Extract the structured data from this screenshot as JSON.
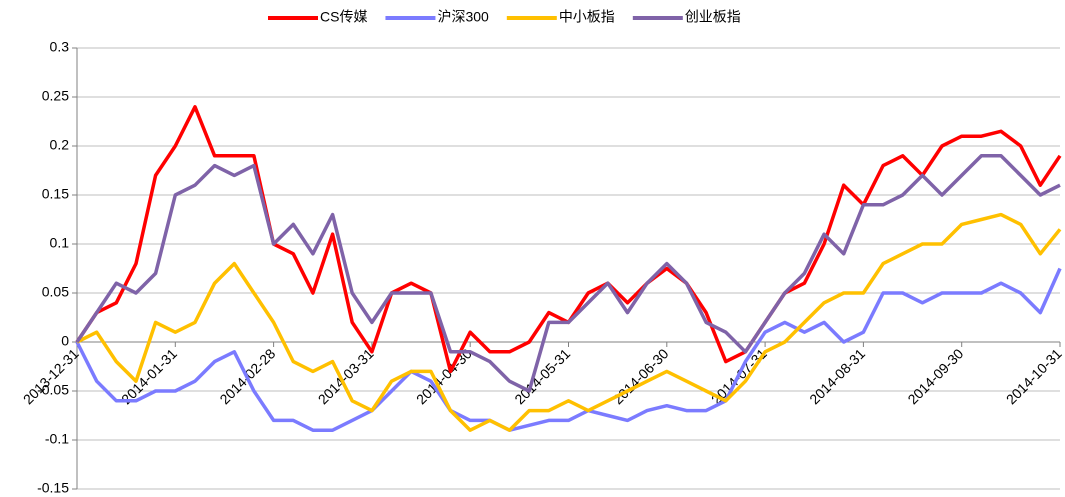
{
  "chart_data": {
    "type": "line",
    "categories": [
      "2013-12-31",
      null,
      null,
      null,
      null,
      "2014-01-31",
      null,
      null,
      null,
      null,
      "2014-02-28",
      null,
      null,
      null,
      null,
      "2014-03-31",
      null,
      null,
      null,
      null,
      "2014-04-30",
      null,
      null,
      null,
      null,
      "2014-05-31",
      null,
      null,
      null,
      null,
      "2014-06-30",
      null,
      null,
      null,
      null,
      "2014-07-31",
      null,
      null,
      null,
      null,
      "2014-08-31",
      null,
      null,
      null,
      null,
      "2014-09-30",
      null,
      null,
      null,
      null,
      "2014-10-31"
    ],
    "series": [
      {
        "name": "CS传媒",
        "color": "#ff0000",
        "values": [
          0,
          0.03,
          0.04,
          0.08,
          0.17,
          0.2,
          0.24,
          0.19,
          0.19,
          0.19,
          0.1,
          0.09,
          0.05,
          0.11,
          0.02,
          -0.01,
          0.05,
          0.06,
          0.05,
          -0.03,
          0.01,
          -0.01,
          -0.01,
          0,
          0.03,
          0.02,
          0.05,
          0.06,
          0.04,
          0.06,
          0.075,
          0.06,
          0.03,
          -0.02,
          -0.01,
          0.02,
          0.05,
          0.06,
          0.1,
          0.16,
          0.14,
          0.18,
          0.19,
          0.17,
          0.2,
          0.21,
          0.21,
          0.215,
          0.2,
          0.16,
          0.19
        ]
      },
      {
        "name": "沪深300",
        "color": "#7b7bff",
        "values": [
          0,
          -0.04,
          -0.06,
          -0.06,
          -0.05,
          -0.05,
          -0.04,
          -0.02,
          -0.01,
          -0.05,
          -0.08,
          -0.08,
          -0.09,
          -0.09,
          -0.08,
          -0.07,
          -0.05,
          -0.03,
          -0.04,
          -0.07,
          -0.08,
          -0.08,
          -0.09,
          -0.085,
          -0.08,
          -0.08,
          -0.07,
          -0.075,
          -0.08,
          -0.07,
          -0.065,
          -0.07,
          -0.07,
          -0.06,
          -0.02,
          0.01,
          0.02,
          0.01,
          0.02,
          0,
          0.01,
          0.05,
          0.05,
          0.04,
          0.05,
          0.05,
          0.05,
          0.06,
          0.05,
          0.03,
          0.075
        ]
      },
      {
        "name": "中小板指",
        "color": "#ffc000",
        "values": [
          0,
          0.01,
          -0.02,
          -0.04,
          0.02,
          0.01,
          0.02,
          0.06,
          0.08,
          0.05,
          0.02,
          -0.02,
          -0.03,
          -0.02,
          -0.06,
          -0.07,
          -0.04,
          -0.03,
          -0.03,
          -0.07,
          -0.09,
          -0.08,
          -0.09,
          -0.07,
          -0.07,
          -0.06,
          -0.07,
          -0.06,
          -0.05,
          -0.04,
          -0.03,
          -0.04,
          -0.05,
          -0.06,
          -0.04,
          -0.01,
          0,
          0.02,
          0.04,
          0.05,
          0.05,
          0.08,
          0.09,
          0.1,
          0.1,
          0.12,
          0.125,
          0.13,
          0.12,
          0.09,
          0.115
        ]
      },
      {
        "name": "创业板指",
        "color": "#7f63a8",
        "values": [
          0,
          0.03,
          0.06,
          0.05,
          0.07,
          0.15,
          0.16,
          0.18,
          0.17,
          0.18,
          0.1,
          0.12,
          0.09,
          0.13,
          0.05,
          0.02,
          0.05,
          0.05,
          0.05,
          -0.01,
          -0.01,
          -0.02,
          -0.04,
          -0.05,
          0.02,
          0.02,
          0.04,
          0.06,
          0.03,
          0.06,
          0.08,
          0.06,
          0.02,
          0.01,
          -0.01,
          0.02,
          0.05,
          0.07,
          0.11,
          0.09,
          0.14,
          0.14,
          0.15,
          0.17,
          0.15,
          0.17,
          0.19,
          0.19,
          0.17,
          0.15,
          0.16
        ]
      }
    ],
    "ylim": [
      -0.15,
      0.3
    ],
    "yticks": [
      -0.15,
      -0.1,
      -0.05,
      0,
      0.05,
      0.1,
      0.15,
      0.2,
      0.25,
      0.3
    ],
    "grid": true,
    "legend": "top"
  }
}
